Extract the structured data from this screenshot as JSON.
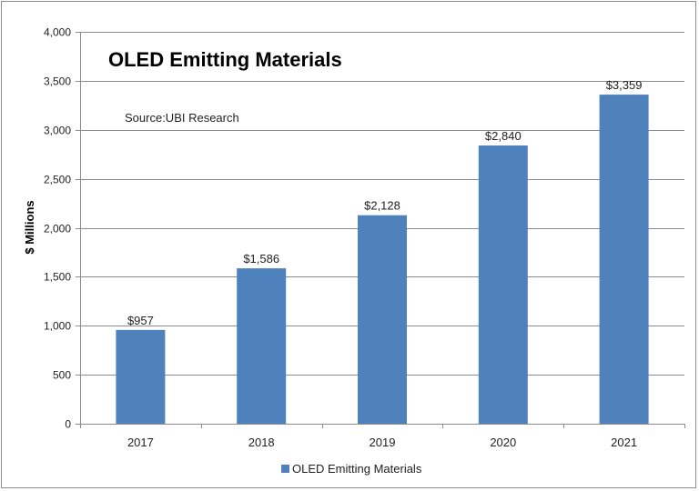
{
  "chart_data": {
    "type": "bar",
    "title": "OLED Emitting Materials",
    "annotation": "Source:UBI Research",
    "ylabel": "$ Millions",
    "xlabel": "",
    "categories": [
      "2017",
      "2018",
      "2019",
      "2020",
      "2021"
    ],
    "series": [
      {
        "name": "OLED Emitting Materials",
        "values": [
          957,
          1586,
          2128,
          2840,
          3359
        ],
        "labels": [
          "$957",
          "$1,586",
          "$2,128",
          "$2,840",
          "$3,359"
        ],
        "color": "#4f81bd"
      }
    ],
    "ylim": [
      0,
      4000
    ],
    "yticks": [
      0,
      500,
      1000,
      1500,
      2000,
      2500,
      3000,
      3500,
      4000
    ],
    "ytick_labels": [
      "0",
      "500",
      "1,000",
      "1,500",
      "2,000",
      "2,500",
      "3,000",
      "3,500",
      "4,000"
    ],
    "grid": true,
    "legend": "bottom"
  }
}
